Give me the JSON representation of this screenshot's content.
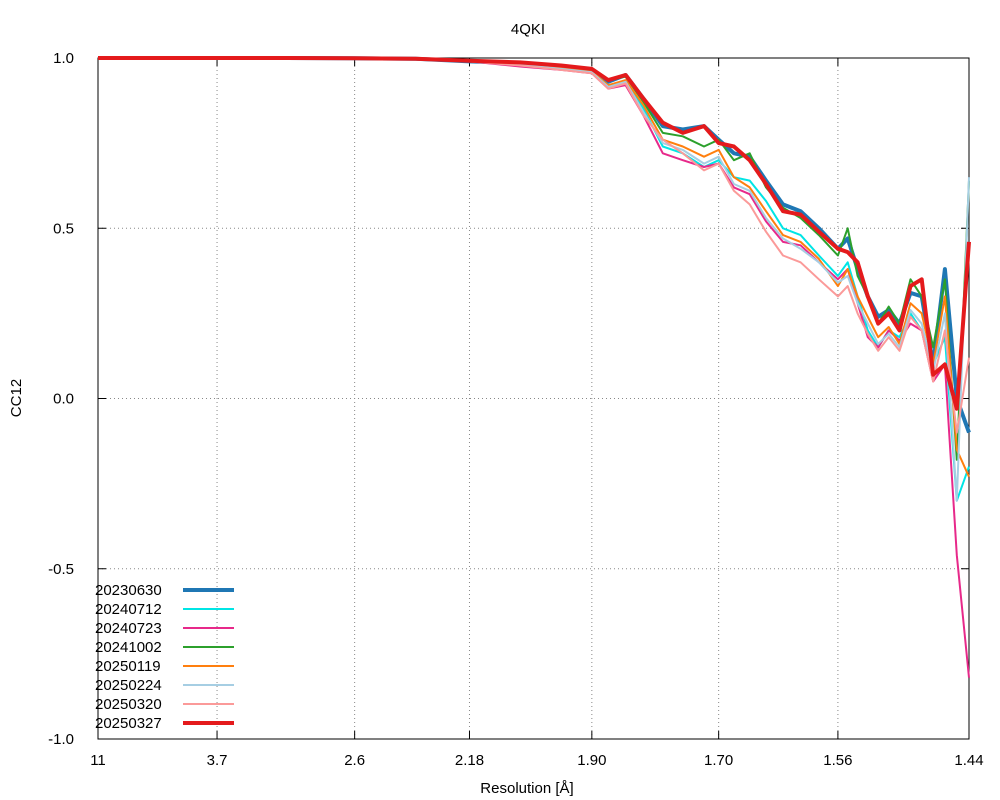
{
  "chart_data": {
    "type": "line",
    "title": "4QKI",
    "xlabel": "Resolution [Å]",
    "ylabel": "CC12",
    "ylim": [
      -1.0,
      1.0
    ],
    "y_ticks": [
      "1.0",
      "0.5",
      "0.0",
      "-0.5",
      "-1.0"
    ],
    "y_tick_values": [
      1.0,
      0.5,
      0.0,
      -0.5,
      -1.0
    ],
    "x_ticks": [
      "11",
      "3.7",
      "2.6",
      "2.18",
      "1.90",
      "1.70",
      "1.56",
      "1.44"
    ],
    "x_scale": "reciprocal-squared resolution",
    "grid": true,
    "legend_position": "bottom-left",
    "resolution": [
      11.0,
      5.0,
      3.7,
      3.0,
      2.6,
      2.35,
      2.18,
      2.05,
      1.96,
      1.9,
      1.87,
      1.84,
      1.81,
      1.78,
      1.75,
      1.72,
      1.7,
      1.68,
      1.66,
      1.64,
      1.62,
      1.6,
      1.58,
      1.56,
      1.55,
      1.54,
      1.53,
      1.52,
      1.51,
      1.5,
      1.49,
      1.48,
      1.47,
      1.46,
      1.45,
      1.44
    ],
    "series": [
      {
        "name": "20230630",
        "color": "#1f77b4",
        "width": 4,
        "values": [
          1.0,
          1.0,
          1.0,
          1.0,
          0.999,
          0.998,
          0.99,
          0.985,
          0.975,
          0.965,
          0.93,
          0.95,
          0.88,
          0.8,
          0.79,
          0.8,
          0.76,
          0.72,
          0.71,
          0.64,
          0.57,
          0.55,
          0.5,
          0.44,
          0.47,
          0.38,
          0.3,
          0.24,
          0.26,
          0.22,
          0.31,
          0.3,
          0.1,
          0.38,
          0.0,
          -0.1
        ]
      },
      {
        "name": "20240712",
        "color": "#00e5e5",
        "width": 2,
        "values": [
          1.0,
          1.0,
          1.0,
          1.0,
          0.999,
          0.997,
          0.99,
          0.98,
          0.97,
          0.96,
          0.92,
          0.93,
          0.85,
          0.74,
          0.72,
          0.68,
          0.7,
          0.65,
          0.64,
          0.58,
          0.5,
          0.48,
          0.42,
          0.36,
          0.4,
          0.3,
          0.2,
          0.15,
          0.2,
          0.18,
          0.25,
          0.2,
          0.1,
          0.18,
          -0.3,
          -0.2
        ]
      },
      {
        "name": "20240723",
        "color": "#e7298a",
        "width": 2,
        "values": [
          1.0,
          1.0,
          1.0,
          1.0,
          0.999,
          0.997,
          0.99,
          0.975,
          0.965,
          0.955,
          0.91,
          0.92,
          0.83,
          0.72,
          0.7,
          0.68,
          0.69,
          0.62,
          0.6,
          0.52,
          0.46,
          0.45,
          0.4,
          0.35,
          0.38,
          0.28,
          0.18,
          0.15,
          0.2,
          0.17,
          0.22,
          0.2,
          0.05,
          0.1,
          -0.46,
          -0.82
        ]
      },
      {
        "name": "20241002",
        "color": "#2ca02c",
        "width": 2,
        "values": [
          1.0,
          1.0,
          1.0,
          1.0,
          0.999,
          0.998,
          0.99,
          0.985,
          0.975,
          0.965,
          0.935,
          0.945,
          0.87,
          0.78,
          0.77,
          0.74,
          0.76,
          0.7,
          0.72,
          0.62,
          0.56,
          0.53,
          0.48,
          0.42,
          0.5,
          0.36,
          0.3,
          0.22,
          0.27,
          0.22,
          0.35,
          0.3,
          0.15,
          0.35,
          -0.18,
          0.64
        ]
      },
      {
        "name": "20250119",
        "color": "#ff7f0e",
        "width": 2,
        "values": [
          1.0,
          1.0,
          1.0,
          1.0,
          0.999,
          0.997,
          0.99,
          0.98,
          0.97,
          0.96,
          0.92,
          0.935,
          0.86,
          0.76,
          0.74,
          0.71,
          0.73,
          0.65,
          0.62,
          0.55,
          0.48,
          0.46,
          0.41,
          0.33,
          0.38,
          0.3,
          0.24,
          0.18,
          0.21,
          0.16,
          0.28,
          0.25,
          0.1,
          0.3,
          -0.15,
          -0.23
        ]
      },
      {
        "name": "20250224",
        "color": "#a6cee3",
        "width": 2,
        "values": [
          1.0,
          1.0,
          1.0,
          1.0,
          0.999,
          0.997,
          0.99,
          0.98,
          0.968,
          0.958,
          0.915,
          0.93,
          0.84,
          0.75,
          0.73,
          0.69,
          0.71,
          0.63,
          0.61,
          0.53,
          0.47,
          0.44,
          0.4,
          0.34,
          0.36,
          0.28,
          0.22,
          0.16,
          0.19,
          0.15,
          0.26,
          0.22,
          0.08,
          0.25,
          -0.3,
          0.65
        ]
      },
      {
        "name": "20250320",
        "color": "#fb9a99",
        "width": 2,
        "values": [
          1.0,
          1.0,
          1.0,
          1.0,
          0.999,
          0.997,
          0.99,
          0.978,
          0.965,
          0.955,
          0.91,
          0.925,
          0.83,
          0.76,
          0.72,
          0.67,
          0.69,
          0.61,
          0.57,
          0.49,
          0.42,
          0.4,
          0.35,
          0.3,
          0.33,
          0.25,
          0.19,
          0.14,
          0.18,
          0.14,
          0.24,
          0.2,
          0.05,
          0.2,
          -0.1,
          0.12
        ]
      },
      {
        "name": "20250327",
        "color": "#e41a1c",
        "width": 4,
        "values": [
          1.0,
          1.0,
          1.0,
          1.0,
          0.999,
          0.998,
          0.992,
          0.987,
          0.978,
          0.968,
          0.935,
          0.95,
          0.88,
          0.81,
          0.78,
          0.8,
          0.75,
          0.74,
          0.7,
          0.63,
          0.55,
          0.54,
          0.49,
          0.44,
          0.43,
          0.4,
          0.3,
          0.22,
          0.25,
          0.2,
          0.33,
          0.35,
          0.07,
          0.1,
          -0.03,
          0.46
        ]
      }
    ]
  }
}
